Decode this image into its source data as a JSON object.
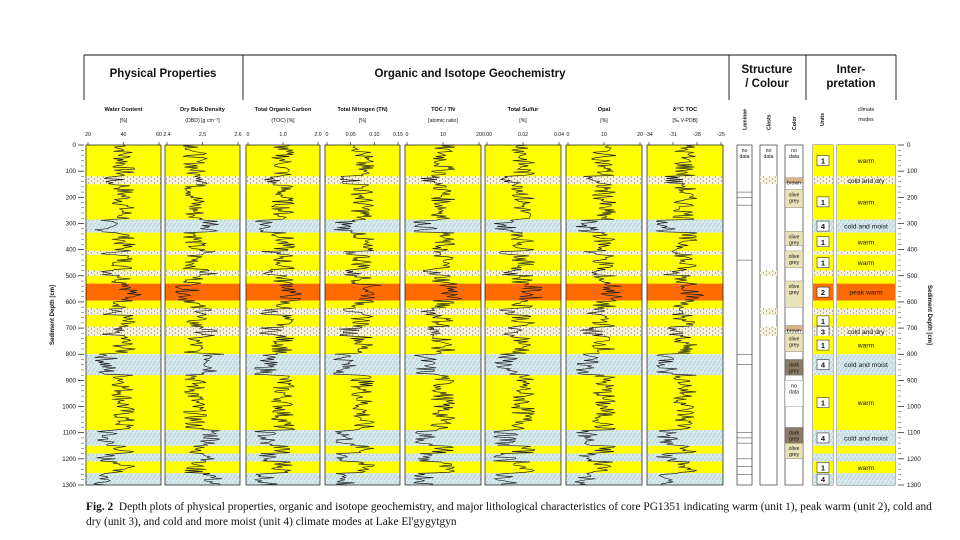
{
  "headers": {
    "physical": "Physical Properties",
    "organic": "Organic and Isotope Geochemistry",
    "structure": "Structure / Colour",
    "interpretation": "Inter- pretation"
  },
  "columns": [
    {
      "title": "Water Content",
      "unit": "[%]",
      "ticks": [
        "20",
        "40",
        "60"
      ]
    },
    {
      "title": "Dry Bulk Density",
      "unit": "(DBD) [g cm⁻³]",
      "ticks": [
        "2.4",
        "2.5",
        "2.6"
      ]
    },
    {
      "title": "Total Organic Carbon",
      "unit": "(TOC) [%]",
      "ticks": [
        "0",
        "1.0",
        "2.0"
      ]
    },
    {
      "title": "Total Nitrogen (TN)",
      "unit": "[%]",
      "ticks": [
        "0",
        "0.05",
        "0.10",
        "0.15"
      ]
    },
    {
      "title": "TOC / TN",
      "unit": "[atomic ratio]",
      "ticks": [
        "0",
        "10",
        "20"
      ]
    },
    {
      "title": "Total Sulfur",
      "unit": "[%]",
      "ticks": [
        "0.00",
        "0.02",
        "0.04"
      ]
    },
    {
      "title": "Opal",
      "unit": "[%]",
      "ticks": [
        "0",
        "10",
        "20"
      ]
    },
    {
      "title": "δ¹³C TOC",
      "unit": "[‰ V-PDB]",
      "ticks": [
        "-34",
        "-31",
        "-28",
        "-25"
      ]
    }
  ],
  "structure_columns": [
    "Laminae",
    "Clasts",
    "Color"
  ],
  "structure_no_data": [
    "no data",
    "no data",
    "no data"
  ],
  "color_labels": [
    "brown",
    "olive grey",
    "olive grey",
    "olive grey",
    "olive grey",
    "brown",
    "olive grey",
    "dark grey",
    "no data",
    "dark grey",
    "olive grey"
  ],
  "interp_columns": {
    "units": "Units",
    "modes": "climate modes"
  },
  "depth_axis": {
    "label": "Sediment Depth [cm]",
    "ticks": [
      0,
      100,
      200,
      300,
      400,
      500,
      600,
      700,
      800,
      900,
      1000,
      1100,
      1200,
      1300
    ],
    "range": [
      0,
      1300
    ]
  },
  "intervals": [
    {
      "from": 0,
      "to": 120,
      "unit": "1",
      "mode": "warm"
    },
    {
      "from": 120,
      "to": 150,
      "unit": "3",
      "mode": "cold and dry"
    },
    {
      "from": 150,
      "to": 285,
      "unit": "1",
      "mode": "warm"
    },
    {
      "from": 285,
      "to": 335,
      "unit": "4",
      "mode": "cold and moist"
    },
    {
      "from": 335,
      "to": 405,
      "unit": "1",
      "mode": "warm"
    },
    {
      "from": 405,
      "to": 420,
      "unit": "3",
      "mode": ""
    },
    {
      "from": 420,
      "to": 480,
      "unit": "1",
      "mode": "warm"
    },
    {
      "from": 480,
      "to": 500,
      "unit": "3",
      "mode": ""
    },
    {
      "from": 500,
      "to": 530,
      "unit": "1",
      "mode": ""
    },
    {
      "from": 530,
      "to": 595,
      "unit": "2",
      "mode": "peak warm"
    },
    {
      "from": 595,
      "to": 625,
      "unit": "1",
      "mode": ""
    },
    {
      "from": 625,
      "to": 650,
      "unit": "3",
      "mode": ""
    },
    {
      "from": 650,
      "to": 695,
      "unit": "1",
      "mode": ""
    },
    {
      "from": 695,
      "to": 730,
      "unit": "3",
      "mode": "cold and dry"
    },
    {
      "from": 730,
      "to": 800,
      "unit": "1",
      "mode": "warm"
    },
    {
      "from": 800,
      "to": 880,
      "unit": "4",
      "mode": "cold and moist"
    },
    {
      "from": 880,
      "to": 1090,
      "unit": "1",
      "mode": "warm"
    },
    {
      "from": 1090,
      "to": 1150,
      "unit": "4",
      "mode": "cold and moist"
    },
    {
      "from": 1150,
      "to": 1180,
      "unit": "1",
      "mode": ""
    },
    {
      "from": 1180,
      "to": 1210,
      "unit": "4",
      "mode": ""
    },
    {
      "from": 1210,
      "to": 1255,
      "unit": "1",
      "mode": "warm"
    },
    {
      "from": 1255,
      "to": 1300,
      "unit": "4",
      "mode": ""
    }
  ],
  "colors": {
    "warm": "#ffff00",
    "peak": "#ff6b00",
    "peak_edge": "#f5a000",
    "cold_dry": "#f6f2d8",
    "cold_moist": "#d6ecec"
  },
  "caption": {
    "label": "Fig. 2",
    "text": "Depth plots of physical properties, organic and isotope geochemistry, and major lithological characteristics of core PG1351 indicating warm (unit 1), peak warm (unit 2), cold and dry (unit 3), and cold and more moist (unit 4) climate modes at Lake El'gygytgyn"
  }
}
